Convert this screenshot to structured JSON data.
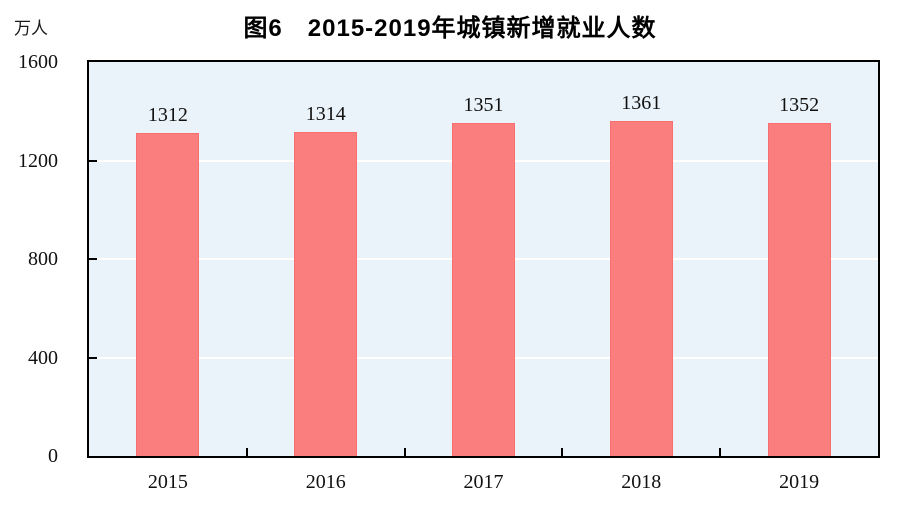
{
  "header": {
    "title": "图6　2015-2019年城镇新增就业人数",
    "unit_label": "万人"
  },
  "chart_data": {
    "type": "bar",
    "title": "图6　2015-2019年城镇新增就业人数",
    "unit_label": "万人",
    "categories": [
      "2015",
      "2016",
      "2017",
      "2018",
      "2019"
    ],
    "values": [
      1312,
      1314,
      1351,
      1361,
      1352
    ],
    "xlabel": "",
    "ylabel": "万人",
    "ylim": [
      0,
      1600
    ],
    "yticks": [
      0,
      400,
      800,
      1200,
      1600
    ],
    "grid": "horizontal-gridlines-at-yticks",
    "legend": "none",
    "colors": {
      "bar_fill": "#fb7e7e",
      "bar_border": "#f96f6f",
      "plot_background": "#eaf3f9",
      "gridline": "#ffffff",
      "axis_frame": "#000000",
      "text": "#111111"
    }
  }
}
